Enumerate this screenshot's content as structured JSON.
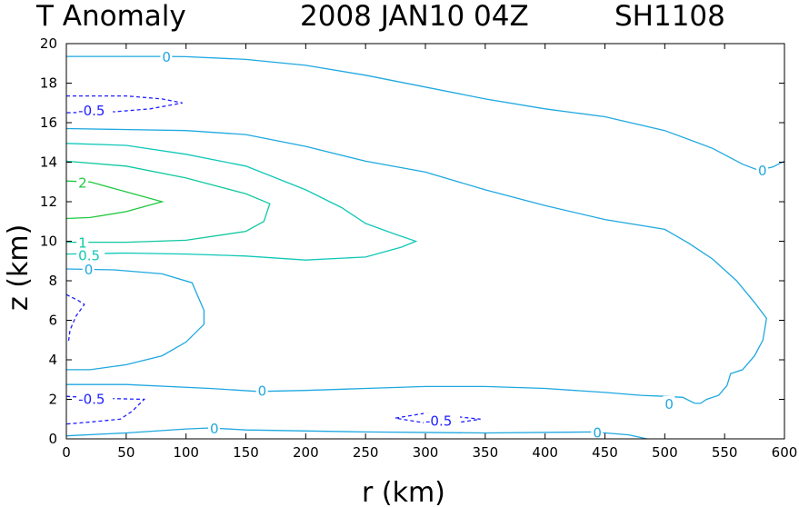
{
  "title": {
    "variable": "T Anomaly",
    "datetime": "2008 JAN10 04Z",
    "storm_id": "SH1108"
  },
  "chart_data": {
    "type": "contour",
    "title": "T Anomaly   2008 JAN10 04Z   SH1108",
    "xlabel": "r (km)",
    "ylabel": "z (km)",
    "xlim": [
      0,
      600
    ],
    "ylim": [
      0,
      20
    ],
    "xticks": [
      0,
      50,
      100,
      150,
      200,
      250,
      300,
      350,
      400,
      450,
      500,
      550,
      600
    ],
    "yticks": [
      0,
      2,
      4,
      6,
      8,
      10,
      12,
      14,
      16,
      18,
      20
    ],
    "colors": {
      "-0.5": "#2020ff",
      "0": "#1fa8e0",
      "0.5": "#10c8b8",
      "1": "#10c8a0",
      "2": "#20c840"
    },
    "contours": [
      {
        "level": "0",
        "style": "solid",
        "labels": [
          {
            "r": 80,
            "z": 19.35
          }
        ],
        "points": [
          [
            0,
            19.35
          ],
          [
            40,
            19.35
          ],
          [
            80,
            19.35
          ],
          [
            100,
            19.34
          ],
          [
            150,
            19.2
          ],
          [
            200,
            18.9
          ],
          [
            250,
            18.4
          ],
          [
            300,
            17.8
          ],
          [
            350,
            17.2
          ],
          [
            400,
            16.7
          ],
          [
            450,
            16.3
          ],
          [
            500,
            15.6
          ],
          [
            540,
            14.7
          ],
          [
            565,
            13.9
          ],
          [
            578,
            13.6
          ],
          [
            590,
            13.75
          ],
          [
            600,
            14.05
          ]
        ]
      },
      {
        "level": "0",
        "style": "solid",
        "labels": [
          {
            "r": 578,
            "z": 13.6
          }
        ],
        "points": [
          [
            0,
            15.7
          ],
          [
            100,
            15.6
          ],
          [
            150,
            15.4
          ],
          [
            200,
            14.8
          ],
          [
            250,
            14.05
          ],
          [
            300,
            13.5
          ],
          [
            350,
            12.6
          ],
          [
            400,
            11.8
          ],
          [
            450,
            11.1
          ],
          [
            500,
            10.6
          ],
          [
            520,
            9.9
          ],
          [
            540,
            9.1
          ],
          [
            560,
            8.0
          ],
          [
            575,
            6.9
          ],
          [
            585,
            6.1
          ],
          [
            582,
            5.0
          ],
          [
            575,
            4.2
          ],
          [
            565,
            3.5
          ],
          [
            555,
            3.3
          ],
          [
            552,
            2.7
          ],
          [
            545,
            2.2
          ],
          [
            535,
            2.0
          ],
          [
            530,
            1.8
          ],
          [
            525,
            1.8
          ]
        ]
      },
      {
        "level": "0",
        "style": "solid",
        "labels": [
          {
            "r": 500,
            "z": 1.8
          },
          {
            "r": 160,
            "z": 2.45
          }
        ],
        "points": [
          [
            525,
            1.8
          ],
          [
            515,
            2.1
          ],
          [
            500,
            2.15
          ],
          [
            480,
            2.2
          ],
          [
            450,
            2.35
          ],
          [
            400,
            2.55
          ],
          [
            350,
            2.65
          ],
          [
            300,
            2.65
          ],
          [
            250,
            2.55
          ],
          [
            200,
            2.45
          ],
          [
            160,
            2.4
          ],
          [
            120,
            2.55
          ],
          [
            50,
            2.75
          ],
          [
            0,
            2.75
          ]
        ]
      },
      {
        "level": "0",
        "style": "solid",
        "labels": [
          {
            "r": 15,
            "z": 8.6
          }
        ],
        "points": [
          [
            0,
            8.6
          ],
          [
            40,
            8.55
          ],
          [
            80,
            8.35
          ],
          [
            105,
            7.9
          ],
          [
            115,
            6.5
          ],
          [
            115,
            5.8
          ],
          [
            100,
            4.9
          ],
          [
            80,
            4.2
          ],
          [
            50,
            3.75
          ],
          [
            20,
            3.5
          ],
          [
            0,
            3.5
          ]
        ]
      },
      {
        "level": "0",
        "style": "solid",
        "labels": [
          {
            "r": 120,
            "z": 0.55
          },
          {
            "r": 440,
            "z": 0.35
          }
        ],
        "points": [
          [
            0,
            0.15
          ],
          [
            50,
            0.3
          ],
          [
            100,
            0.5
          ],
          [
            120,
            0.55
          ],
          [
            150,
            0.45
          ],
          [
            250,
            0.35
          ],
          [
            350,
            0.3
          ],
          [
            440,
            0.35
          ],
          [
            470,
            0.2
          ],
          [
            485,
            0.0
          ]
        ]
      },
      {
        "level": "0.5",
        "style": "solid",
        "labels": [
          {
            "r": 10,
            "z": 9.3
          }
        ],
        "points": [
          [
            0,
            14.95
          ],
          [
            50,
            14.85
          ],
          [
            100,
            14.4
          ],
          [
            150,
            13.8
          ],
          [
            200,
            12.6
          ],
          [
            230,
            11.7
          ],
          [
            250,
            10.9
          ],
          [
            275,
            10.35
          ],
          [
            292,
            10.0
          ],
          [
            280,
            9.7
          ],
          [
            250,
            9.2
          ],
          [
            200,
            9.05
          ],
          [
            150,
            9.25
          ],
          [
            100,
            9.35
          ],
          [
            50,
            9.4
          ],
          [
            0,
            9.35
          ]
        ]
      },
      {
        "level": "1",
        "style": "solid",
        "labels": [
          {
            "r": 10,
            "z": 9.95
          }
        ],
        "points": [
          [
            0,
            14.05
          ],
          [
            50,
            13.8
          ],
          [
            100,
            13.2
          ],
          [
            150,
            12.4
          ],
          [
            170,
            11.9
          ],
          [
            165,
            11.0
          ],
          [
            150,
            10.5
          ],
          [
            100,
            10.05
          ],
          [
            50,
            9.95
          ],
          [
            0,
            9.95
          ]
        ]
      },
      {
        "level": "2",
        "style": "solid",
        "labels": [
          {
            "r": 10,
            "z": 13.0
          }
        ],
        "points": [
          [
            0,
            13.05
          ],
          [
            20,
            13.0
          ],
          [
            50,
            12.5
          ],
          [
            80,
            12.0
          ],
          [
            50,
            11.5
          ],
          [
            20,
            11.2
          ],
          [
            0,
            11.15
          ]
        ]
      },
      {
        "level": "-0.5",
        "style": "dashed",
        "labels": [
          {
            "r": 10,
            "z": 16.65
          }
        ],
        "points": [
          [
            0,
            17.35
          ],
          [
            50,
            17.35
          ],
          [
            80,
            17.2
          ],
          [
            97,
            17.0
          ],
          [
            70,
            16.7
          ],
          [
            40,
            16.55
          ],
          [
            0,
            16.5
          ]
        ]
      },
      {
        "level": "-0.5",
        "style": "dashed",
        "labels": [],
        "points": [
          [
            0,
            7.3
          ],
          [
            10,
            7.0
          ],
          [
            15,
            6.8
          ],
          [
            8,
            6.2
          ],
          [
            3,
            5.5
          ],
          [
            2,
            5.0
          ],
          [
            0,
            4.9
          ]
        ]
      },
      {
        "level": "-0.5",
        "style": "dashed",
        "labels": [
          {
            "r": 10,
            "z": 2.05
          }
        ],
        "points": [
          [
            0,
            2.15
          ],
          [
            30,
            2.05
          ],
          [
            65,
            2.0
          ],
          [
            55,
            1.4
          ],
          [
            45,
            1.0
          ],
          [
            20,
            0.85
          ],
          [
            0,
            0.75
          ]
        ]
      },
      {
        "level": "-0.5",
        "style": "dashed",
        "labels": [
          {
            "r": 300,
            "z": 0.95
          }
        ],
        "points": [
          [
            275,
            1.05
          ],
          [
            300,
            1.3
          ],
          [
            330,
            1.1
          ],
          [
            346,
            1.0
          ],
          [
            330,
            0.85
          ],
          [
            300,
            0.8
          ],
          [
            275,
            1.05
          ]
        ]
      }
    ]
  }
}
